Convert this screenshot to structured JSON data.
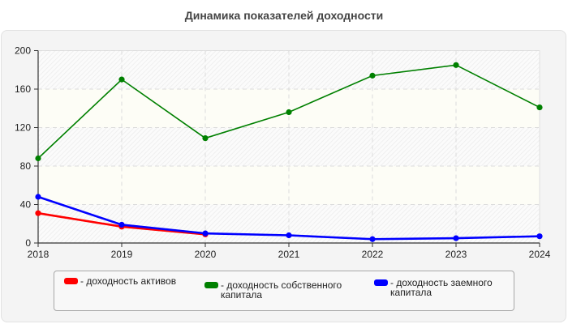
{
  "title": "Динамика показателей доходности",
  "chart_data": {
    "type": "line",
    "title": "Динамика показателей доходности",
    "xlabel": "",
    "ylabel": "",
    "x": [
      "2018",
      "2019",
      "2020",
      "2021",
      "2022",
      "2023",
      "2024"
    ],
    "ylim": [
      0,
      200
    ],
    "yticks": [
      0,
      40,
      80,
      120,
      160,
      200
    ],
    "grid": true,
    "legend_position": "bottom",
    "series": [
      {
        "name": "доходность активов",
        "color": "#ff0000",
        "values": [
          31,
          17,
          9,
          null,
          null,
          null,
          null
        ]
      },
      {
        "name": "доходность собственного капитала",
        "color": "#008000",
        "values": [
          88,
          170,
          109,
          136,
          174,
          185,
          141
        ]
      },
      {
        "name": "доходность заемного капитала",
        "color": "#0000ff",
        "values": [
          48,
          19,
          10,
          8,
          4,
          5,
          7
        ]
      }
    ]
  },
  "legend": {
    "items": [
      {
        "label": "- доходность активов",
        "color": "#ff0000"
      },
      {
        "label": "- доходность собственного\nкапитала",
        "color": "#008000"
      },
      {
        "label": "- доходность заемного\nкапитала",
        "color": "#0000ff"
      }
    ]
  }
}
